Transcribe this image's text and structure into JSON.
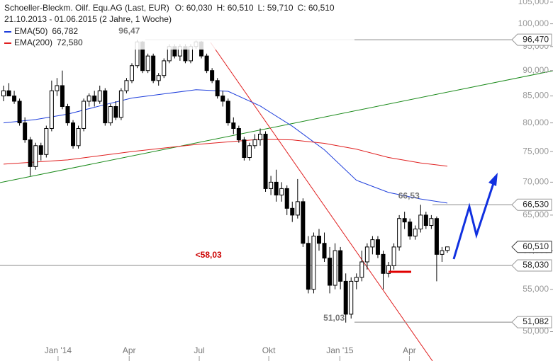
{
  "chart_data": {
    "type": "candlestick",
    "title": "Schoeller-Bleckm. Oilf. Equ.AG (Last, EUR)",
    "ohlc_info": [
      "O: 60,030",
      "H: 60,510",
      "L: 59,710",
      "C: 60,510"
    ],
    "subtitle": "21.10.2013 - 01.06.2015 (2 Jahre, 1 Woche)",
    "log_scale": true,
    "ylim": [
      46.8,
      105.5
    ],
    "yticks": [
      {
        "value": 50,
        "label": "50,000"
      },
      {
        "value": 55,
        "label": "55,000"
      },
      {
        "value": 60,
        "label": "60,000"
      },
      {
        "value": 65,
        "label": "65,000"
      },
      {
        "value": 70,
        "label": "70,000"
      },
      {
        "value": 75,
        "label": "75,000"
      },
      {
        "value": 80,
        "label": "80,000"
      },
      {
        "value": 85,
        "label": "85,000"
      },
      {
        "value": 90,
        "label": "90,000"
      },
      {
        "value": 95,
        "label": "95,000"
      },
      {
        "value": 100,
        "label": "100,000"
      },
      {
        "value": 105,
        "label": "105,000"
      }
    ],
    "xlim": [
      -0.66,
      94.8
    ],
    "xticks": [
      {
        "value": 10.2,
        "label": "Jan '14"
      },
      {
        "value": 23.5,
        "label": "Apr"
      },
      {
        "value": 36.6,
        "label": "Jul"
      },
      {
        "value": 49.6,
        "label": "Okt"
      },
      {
        "value": 62.9,
        "label": "Jan '15"
      },
      {
        "value": 75.9,
        "label": "Apr"
      }
    ],
    "up_color": "#ffffff",
    "down_color": "#000000",
    "open": [
      85,
      86,
      85,
      84,
      80,
      77,
      72.5,
      76,
      74.5,
      79,
      86,
      87,
      83,
      80,
      76,
      79,
      84,
      85,
      84,
      86,
      80,
      83,
      81,
      86,
      88,
      91,
      96,
      90,
      93,
      88,
      89,
      92,
      95,
      93,
      95,
      92,
      95,
      96,
      93,
      90,
      88,
      85,
      84,
      80,
      79,
      77,
      74,
      76,
      77,
      78,
      69,
      70,
      68,
      69,
      66,
      65,
      67,
      61,
      55,
      62,
      61,
      59,
      55.5,
      60,
      56,
      52,
      56,
      56.5,
      58.5,
      60.5,
      61.5,
      59.5,
      57,
      58,
      60.5,
      64.5,
      64,
      62,
      63,
      65,
      63.5,
      64.5,
      59.5,
      60.03
    ],
    "high": [
      87,
      87.5,
      86,
      84.5,
      81,
      77.5,
      76.5,
      76.5,
      79.5,
      88,
      88.5,
      90,
      83.5,
      80.5,
      79.5,
      84.5,
      85.5,
      86,
      87,
      86.5,
      83.5,
      84,
      86.5,
      88.5,
      91.5,
      96.47,
      96.2,
      93.5,
      93.5,
      89.5,
      92.5,
      95.5,
      95.5,
      95.5,
      95.5,
      95.5,
      96.3,
      96.2,
      93.5,
      90.5,
      88.5,
      86,
      84.5,
      81,
      79.5,
      77.5,
      76.5,
      78,
      79,
      78.5,
      71,
      72,
      70,
      69.5,
      67,
      70.5,
      67.5,
      62,
      62.5,
      63,
      62.5,
      60.5,
      61,
      60.5,
      57,
      56.5,
      57,
      60,
      61,
      62,
      62,
      60,
      58.5,
      61,
      65,
      65.5,
      64.5,
      63.5,
      66.53,
      65.5,
      65,
      64.8,
      60.5,
      60.51
    ],
    "low": [
      84,
      85,
      83.5,
      79.5,
      76.5,
      71,
      72,
      73.5,
      74,
      78.5,
      85,
      82.5,
      79.5,
      75.5,
      75.5,
      78.5,
      83,
      83,
      83.5,
      79.5,
      79.5,
      80.5,
      80.5,
      85.5,
      87.5,
      90.5,
      89.5,
      89.5,
      87.5,
      87,
      88.5,
      91.5,
      92.5,
      92,
      91.5,
      91.5,
      94.5,
      92.5,
      89.5,
      87.5,
      84.5,
      83,
      79.5,
      78,
      76.5,
      73.5,
      73.5,
      75.5,
      76,
      68.5,
      68,
      67,
      67,
      65,
      64,
      64.5,
      60.5,
      54.5,
      54.5,
      60,
      58.5,
      54.5,
      55,
      55,
      51.03,
      51.5,
      55,
      56,
      57.5,
      59.5,
      59,
      55,
      56.5,
      57.5,
      60,
      63,
      61.5,
      61.5,
      62.5,
      63,
      63,
      56,
      58.5,
      59.71
    ],
    "close": [
      86,
      85,
      84,
      80,
      77,
      72.5,
      76,
      74.5,
      79,
      86,
      87,
      83,
      80,
      76,
      79,
      84,
      85,
      84,
      86,
      80,
      83,
      81,
      86,
      88,
      91,
      96,
      90,
      93,
      88,
      89,
      92,
      95,
      93,
      95,
      92,
      95,
      96,
      93,
      90,
      88,
      85,
      84,
      80,
      79,
      77,
      74,
      76,
      77,
      78,
      69,
      70,
      68,
      69,
      66,
      65,
      67,
      61,
      55,
      62,
      61,
      59,
      55.5,
      60,
      56,
      52,
      56,
      56.5,
      58.5,
      60.5,
      61.5,
      59.5,
      57,
      58,
      60.5,
      64.5,
      64,
      62,
      63,
      65,
      63.5,
      64.5,
      59.5,
      60,
      60.51
    ],
    "series": [
      {
        "name": "EMA(50)",
        "value_label": "66,782",
        "color": "#1f3fdc",
        "x": [
          0,
          6,
          12,
          18,
          24,
          30,
          36,
          42,
          48,
          54,
          60,
          66,
          72,
          78,
          83
        ],
        "values": [
          80.0,
          80.6,
          81.6,
          83.1,
          84.6,
          85.4,
          86.2,
          85.9,
          83.1,
          79.4,
          75.3,
          70.3,
          68.4,
          67.4,
          66.782
        ]
      },
      {
        "name": "EMA(200)",
        "value_label": "72,580",
        "color": "#e02020",
        "x": [
          0,
          12,
          24,
          36,
          48,
          54,
          60,
          66,
          72,
          78,
          83
        ],
        "values": [
          72.9,
          73.6,
          75.0,
          76.2,
          77.1,
          77.0,
          76.4,
          75.4,
          74.0,
          73.1,
          72.58
        ]
      }
    ],
    "levels": [
      {
        "value": 96.47,
        "label": "96,470"
      },
      {
        "value": 66.53,
        "label": "66,530"
      },
      {
        "value": 58.03,
        "label": "58,030"
      },
      {
        "value": 51.082,
        "label": "51,082"
      }
    ],
    "price_box": {
      "value": 60.51,
      "label": "60,510"
    },
    "annotations": [
      {
        "text": "96,47",
        "value": 96.47,
        "x": 25.5,
        "color": "#777777"
      },
      {
        "text": "66,53",
        "value": 66.53,
        "x": 77.8,
        "color": "#777777"
      },
      {
        "text": "51,03",
        "value": 51.03,
        "x": 63.8,
        "color": "#777777"
      },
      {
        "text": "<58,03",
        "value": 58.03,
        "x": 40.8,
        "color": "#cc0000"
      }
    ]
  }
}
